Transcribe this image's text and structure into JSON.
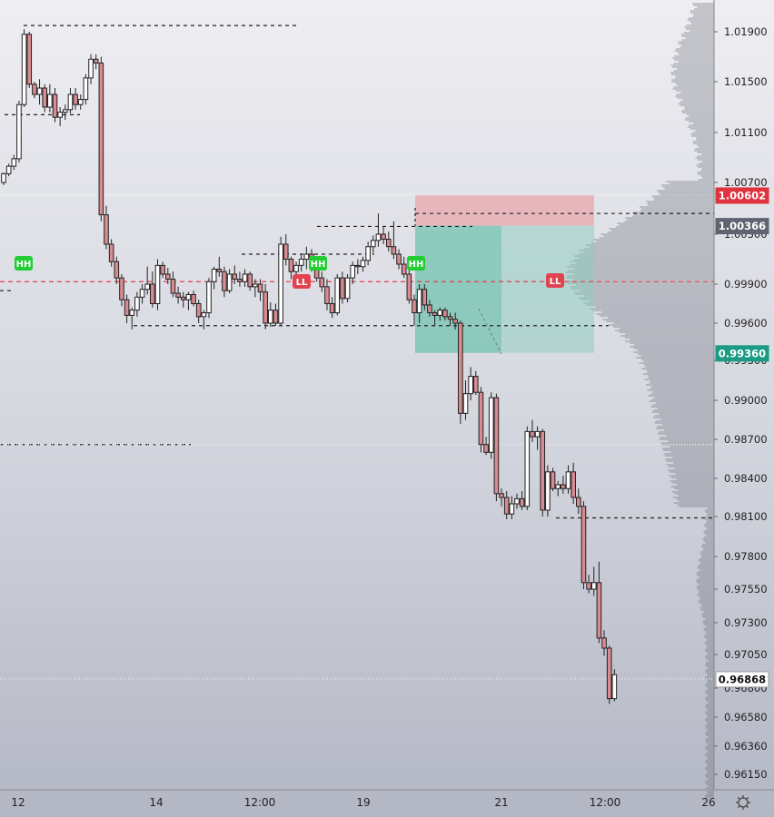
{
  "chart_data": {
    "type": "candlestick",
    "symbol": "",
    "y_ticks": [
      1.019,
      1.015,
      1.011,
      1.007,
      1.003,
      0.999,
      0.996,
      0.993,
      0.99,
      0.987,
      0.984,
      0.981,
      0.978,
      0.9755,
      0.973,
      0.9705,
      0.968,
      0.9658,
      0.9636,
      0.9615
    ],
    "y_tick_labels": [
      "1.01900",
      "1.01500",
      "1.01100",
      "1.00700",
      "1.00300",
      "0.99900",
      "0.99600",
      "0.99300",
      "0.99000",
      "0.98700",
      "0.98400",
      "0.98100",
      "0.97800",
      "0.97550",
      "0.97300",
      "0.97050",
      "0.96800",
      "0.96580",
      "0.96360",
      "0.96150"
    ],
    "x_labels": [
      "12",
      "14",
      "12:00",
      "19",
      "21",
      "12:00",
      "26"
    ],
    "price_badges": [
      {
        "label": "1.00602",
        "value": 1.00602,
        "kind": "stop"
      },
      {
        "label": "1.00366",
        "value": 1.00366,
        "kind": "entry"
      },
      {
        "label": "0.99360",
        "value": 0.9936,
        "kind": "target"
      },
      {
        "label": "0.96868",
        "value": 0.96868,
        "kind": "last"
      }
    ],
    "markers": [
      {
        "label": "HH",
        "kind": "higher-high",
        "price": 0.9999
      },
      {
        "label": "HH",
        "kind": "higher-high",
        "price": 0.9999
      },
      {
        "label": "HH",
        "kind": "higher-high",
        "price": 0.9999
      },
      {
        "label": "LL",
        "kind": "lower-low",
        "price": 0.9989
      },
      {
        "label": "LL",
        "kind": "lower-low",
        "price": 0.9989
      }
    ],
    "levels": [
      {
        "price": 1.0195,
        "style": "dashed"
      },
      {
        "price": 1.0124,
        "style": "dashed"
      },
      {
        "price": 0.9985,
        "style": "dashed"
      },
      {
        "price": 1.0036,
        "style": "dashed"
      },
      {
        "price": 1.0014,
        "style": "dashed"
      },
      {
        "price": 0.9958,
        "style": "dashed"
      },
      {
        "price": 1.0046,
        "style": "dashed"
      },
      {
        "price": 0.9809,
        "style": "dashed"
      },
      {
        "price": 0.9866,
        "style": "dashed"
      },
      {
        "price": 0.9992,
        "style": "dashed-red"
      }
    ],
    "candles": [
      [
        1.007,
        1.0078,
        1.0068,
        1.0077
      ],
      [
        1.0077,
        1.0085,
        1.0075,
        1.0083
      ],
      [
        1.0083,
        1.0092,
        1.008,
        1.0089
      ],
      [
        1.0089,
        1.0135,
        1.0086,
        1.0132
      ],
      [
        1.0132,
        1.0192,
        1.013,
        1.0188
      ],
      [
        1.0188,
        1.019,
        1.0145,
        1.0148
      ],
      [
        1.0148,
        1.015,
        1.0137,
        1.014
      ],
      [
        1.014,
        1.0152,
        1.0132,
        1.0145
      ],
      [
        1.0145,
        1.0148,
        1.0126,
        1.013
      ],
      [
        1.013,
        1.0148,
        1.0126,
        1.014
      ],
      [
        1.014,
        1.0145,
        1.0118,
        1.0122
      ],
      [
        1.0122,
        1.013,
        1.0115,
        1.0126
      ],
      [
        1.0126,
        1.0132,
        1.012,
        1.0128
      ],
      [
        1.0128,
        1.0145,
        1.0125,
        1.014
      ],
      [
        1.014,
        1.0145,
        1.0128,
        1.0132
      ],
      [
        1.0132,
        1.014,
        1.0128,
        1.0136
      ],
      [
        1.0136,
        1.0156,
        1.0132,
        1.0153
      ],
      [
        1.0153,
        1.0172,
        1.0148,
        1.0168
      ],
      [
        1.0168,
        1.0172,
        1.016,
        1.0165
      ],
      [
        1.0165,
        1.017,
        1.004,
        1.0045
      ],
      [
        1.0045,
        1.0052,
        1.0018,
        1.0022
      ],
      [
        1.0022,
        1.0026,
        1.0004,
        1.0008
      ],
      [
        1.0008,
        1.0012,
        0.999,
        0.9995
      ],
      [
        0.9995,
        0.9998,
        0.9973,
        0.9978
      ],
      [
        0.9978,
        0.9982,
        0.996,
        0.9966
      ],
      [
        0.9966,
        0.9972,
        0.9955,
        0.997
      ],
      [
        0.997,
        0.9984,
        0.9965,
        0.998
      ],
      [
        0.998,
        0.999,
        0.9975,
        0.9986
      ],
      [
        0.9986,
        1.0004,
        0.9982,
        0.999
      ],
      [
        0.999,
        1.0,
        0.9972,
        0.9975
      ],
      [
        0.9975,
        1.001,
        0.997,
        1.0005
      ],
      [
        1.0005,
        1.0008,
        0.9995,
        0.9998
      ],
      [
        0.9998,
        1.0003,
        0.999,
        0.9994
      ],
      [
        0.9994,
        1.0,
        0.998,
        0.9983
      ],
      [
        0.9983,
        0.9988,
        0.9975,
        0.998
      ],
      [
        0.998,
        0.9984,
        0.9972,
        0.9978
      ],
      [
        0.9978,
        0.9984,
        0.997,
        0.9982
      ],
      [
        0.9982,
        0.9985,
        0.9973,
        0.9975
      ],
      [
        0.9975,
        0.9978,
        0.996,
        0.9965
      ],
      [
        0.9965,
        0.997,
        0.9955,
        0.9968
      ],
      [
        0.9968,
        0.9995,
        0.9964,
        0.9992
      ],
      [
        0.9992,
        1.0004,
        0.9986,
        1.0002
      ],
      [
        1.0002,
        1.0012,
        0.9996,
        1.0
      ],
      [
        1.0,
        1.0004,
        0.998,
        0.9985
      ],
      [
        0.9985,
        1.0002,
        0.9983,
        0.9998
      ],
      [
        0.9998,
        1.0005,
        0.999,
        0.9994
      ],
      [
        0.9994,
        1.0,
        0.9988,
        0.9992
      ],
      [
        0.9992,
        1.0002,
        0.9988,
        0.9998
      ],
      [
        0.9998,
        1.0,
        0.9985,
        0.9988
      ],
      [
        0.9988,
        0.9994,
        0.998,
        0.999
      ],
      [
        0.999,
        0.9994,
        0.9977,
        0.9984
      ],
      [
        0.9984,
        0.999,
        0.9955,
        0.996
      ],
      [
        0.996,
        0.9976,
        0.9957,
        0.997
      ],
      [
        0.997,
        0.9975,
        0.9958,
        0.996
      ],
      [
        0.996,
        1.0028,
        0.9958,
        1.0022
      ],
      [
        1.0022,
        1.003,
        1.0005,
        1.001
      ],
      [
        1.001,
        1.0012,
        0.9994,
        1.0
      ],
      [
        1.0,
        1.0008,
        0.9992,
        1.0005
      ],
      [
        1.0005,
        1.0014,
        1.0,
        1.001
      ],
      [
        1.001,
        1.002,
        1.0002,
        1.0014
      ],
      [
        1.0014,
        1.0018,
        1.0,
        1.0004
      ],
      [
        1.0004,
        1.0008,
        0.9992,
        0.9995
      ],
      [
        0.9995,
        1.0,
        0.9984,
        0.9988
      ],
      [
        0.9988,
        0.9994,
        0.997,
        0.9975
      ],
      [
        0.9975,
        0.998,
        0.9964,
        0.9968
      ],
      [
        0.9968,
        0.9998,
        0.9966,
        0.9995
      ],
      [
        0.9995,
        1.0,
        0.9975,
        0.9979
      ],
      [
        0.9979,
        0.9998,
        0.9976,
        0.9995
      ],
      [
        0.9995,
        1.0008,
        0.999,
        1.0005
      ],
      [
        1.0005,
        1.001,
        0.9998,
        1.0004
      ],
      [
        1.0004,
        1.0012,
        1.0,
        1.0009
      ],
      [
        1.0009,
        1.0024,
        1.0005,
        1.002
      ],
      [
        1.002,
        1.0029,
        1.0015,
        1.0025
      ],
      [
        1.0025,
        1.0046,
        1.002,
        1.003
      ],
      [
        1.003,
        1.0036,
        1.0022,
        1.0026
      ],
      [
        1.0026,
        1.0032,
        1.0016,
        1.002
      ],
      [
        1.002,
        1.004,
        1.001,
        1.0014
      ],
      [
        1.0014,
        1.0018,
        1.0002,
        1.0006
      ],
      [
        1.0006,
        1.0012,
        0.9995,
        0.9998
      ],
      [
        0.9998,
        1.0002,
        0.9975,
        0.9978
      ],
      [
        0.9978,
        0.9982,
        0.9958,
        0.9968
      ],
      [
        0.9968,
        0.999,
        0.996,
        0.9986
      ],
      [
        0.9986,
        0.999,
        0.997,
        0.9974
      ],
      [
        0.9974,
        0.9978,
        0.9965,
        0.9968
      ],
      [
        0.9968,
        0.997,
        0.9958,
        0.9966
      ],
      [
        0.9966,
        0.9972,
        0.9962,
        0.997
      ],
      [
        0.997,
        0.9972,
        0.9962,
        0.9965
      ],
      [
        0.9965,
        0.9968,
        0.9958,
        0.9963
      ],
      [
        0.9963,
        0.9968,
        0.9955,
        0.996
      ],
      [
        0.996,
        0.9962,
        0.9882,
        0.989
      ],
      [
        0.989,
        0.9915,
        0.9885,
        0.9905
      ],
      [
        0.9905,
        0.9925,
        0.99,
        0.9918
      ],
      [
        0.9918,
        0.9922,
        0.9904,
        0.9906
      ],
      [
        0.9906,
        0.991,
        0.986,
        0.9866
      ],
      [
        0.9866,
        0.9872,
        0.9858,
        0.986
      ],
      [
        0.986,
        0.9906,
        0.9855,
        0.9902
      ],
      [
        0.9902,
        0.9905,
        0.9822,
        0.9828
      ],
      [
        0.9828,
        0.9832,
        0.9818,
        0.9825
      ],
      [
        0.9825,
        0.983,
        0.9808,
        0.9812
      ],
      [
        0.9812,
        0.9826,
        0.9808,
        0.982
      ],
      [
        0.982,
        0.9828,
        0.9816,
        0.9824
      ],
      [
        0.9824,
        0.983,
        0.9815,
        0.9818
      ],
      [
        0.9818,
        0.988,
        0.9815,
        0.9876
      ],
      [
        0.9876,
        0.9885,
        0.9868,
        0.9872
      ],
      [
        0.9872,
        0.988,
        0.9862,
        0.9876
      ],
      [
        0.9876,
        0.9878,
        0.981,
        0.9815
      ],
      [
        0.9815,
        0.985,
        0.981,
        0.9845
      ],
      [
        0.9845,
        0.9848,
        0.983,
        0.9832
      ],
      [
        0.9832,
        0.9838,
        0.9826,
        0.9835
      ],
      [
        0.9835,
        0.9842,
        0.9828,
        0.9832
      ],
      [
        0.9832,
        0.985,
        0.9828,
        0.9845
      ],
      [
        0.9845,
        0.9852,
        0.982,
        0.9825
      ],
      [
        0.9825,
        0.9832,
        0.9812,
        0.9818
      ],
      [
        0.9818,
        0.9822,
        0.9755,
        0.976
      ],
      [
        0.976,
        0.9766,
        0.9752,
        0.9755
      ],
      [
        0.9755,
        0.9772,
        0.975,
        0.976
      ],
      [
        0.976,
        0.9776,
        0.9714,
        0.9718
      ],
      [
        0.9718,
        0.9724,
        0.9704,
        0.971
      ],
      [
        0.971,
        0.9712,
        0.9668,
        0.9672
      ],
      [
        0.9672,
        0.9694,
        0.967,
        0.969
      ]
    ]
  }
}
